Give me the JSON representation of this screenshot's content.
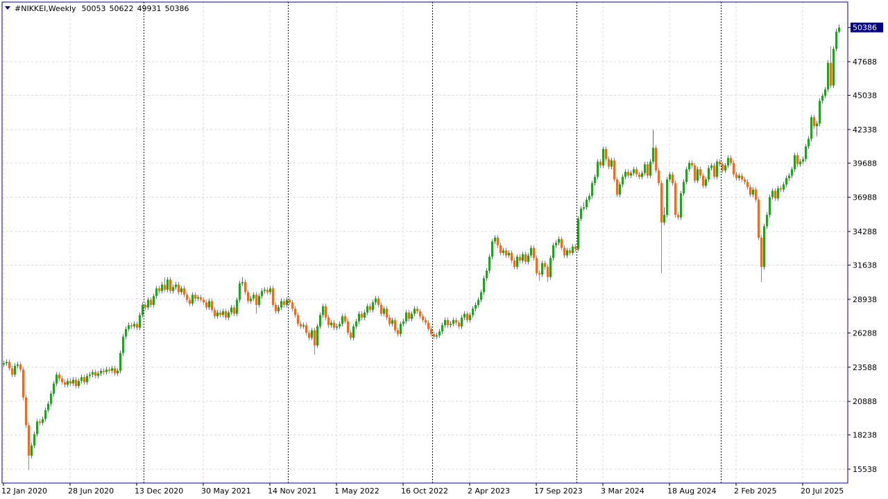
{
  "chart_data": {
    "type": "candlestick",
    "title": "#NIKKEI,Weekly",
    "open": [
      23800,
      23900,
      24000,
      23500,
      23000,
      23700,
      23800,
      23400,
      21200,
      19000,
      16600,
      17400,
      18300,
      19300,
      19200,
      19500,
      20200,
      20700,
      21500,
      22300,
      23000,
      22700,
      22400,
      22200,
      22500,
      22300,
      22600,
      22100,
      22500,
      22800,
      22400,
      22900,
      23000,
      23200,
      22900,
      23100,
      23300,
      23200,
      23400,
      23300,
      23500,
      23100,
      23300,
      24700,
      26000,
      26600,
      26900,
      26800,
      27000,
      26700,
      27700,
      28500,
      28300,
      28900,
      28500,
      29200,
      29800,
      29600,
      30100,
      29700,
      30500,
      29600,
      29900,
      30100,
      29500,
      29800,
      29300,
      28900,
      28600,
      29300,
      29000,
      29100,
      28900,
      28700,
      28300,
      28800,
      28100,
      27600,
      27900,
      27700,
      28000,
      27500,
      27900,
      28300,
      27800,
      28900,
      30200,
      30300,
      29500,
      28800,
      29000,
      29300,
      28500,
      29200,
      29600,
      29700,
      29500,
      29800,
      28500,
      28000,
      28300,
      28800,
      28500,
      28900,
      28700,
      28200,
      27700,
      27000,
      26800,
      26900,
      26300,
      25900,
      26500,
      25300,
      26800,
      27700,
      28400,
      27500,
      26900,
      27100,
      26700,
      26800,
      27000,
      27600,
      27200,
      26300,
      25900,
      26800,
      27200,
      27800,
      27500,
      27900,
      28400,
      28100,
      28700,
      29000,
      28500,
      27800,
      28200,
      27500,
      27000,
      27300,
      26500,
      26200,
      27000,
      27200,
      27900,
      27400,
      27800,
      28200,
      28000,
      27600,
      27300,
      27100,
      26600,
      26200,
      26000,
      26100,
      26400,
      26900,
      27300,
      26900,
      27000,
      27300,
      27100,
      26800,
      27500,
      27800,
      27300,
      27700,
      28200,
      28500,
      28900,
      29500,
      30600,
      31200,
      32300,
      33500,
      33800,
      33200,
      32600,
      32800,
      32400,
      32600,
      32000,
      31500,
      32300,
      32000,
      32500,
      31900,
      32400,
      33000,
      32200,
      31000,
      30900,
      31800,
      31500,
      30700,
      32200,
      33200,
      33400,
      33700,
      33000,
      32400,
      32800,
      32600,
      33100,
      32900,
      35300,
      36100,
      36200,
      36800,
      37100,
      38100,
      38600,
      39800,
      39500,
      40800,
      40000,
      39400,
      39900,
      38400,
      37200,
      38000,
      38600,
      39000,
      38700,
      38900,
      39200,
      38800,
      38600,
      38900,
      39600,
      38700,
      39800,
      40900,
      39100,
      38100,
      35000,
      35600,
      38400,
      38800,
      38100,
      35600,
      35400,
      37300,
      38200,
      39200,
      39700,
      39500,
      38300,
      39200,
      38700,
      37900,
      38400,
      39300,
      39500,
      38600,
      39800,
      39600,
      39100,
      39500,
      40100,
      39700,
      38800,
      38500,
      38700,
      38400,
      38200,
      37800,
      37200,
      37600,
      36800,
      33800,
      31500,
      34700,
      35600,
      37000,
      37500,
      36900,
      37700,
      37600,
      38000,
      38500,
      38700,
      39200,
      40300,
      39600,
      39800,
      40000,
      41000,
      41600,
      43300,
      42600,
      42800,
      44600,
      45000,
      45500,
      47600,
      45800,
      48700,
      50053
    ],
    "high": [
      24100,
      24200,
      24200,
      23700,
      23900,
      24000,
      24000,
      23600,
      21400,
      19200,
      17600,
      18500,
      19500,
      19500,
      19700,
      20400,
      20900,
      21700,
      22500,
      23200,
      23200,
      22900,
      22600,
      22700,
      22700,
      22800,
      22800,
      22700,
      23000,
      23000,
      23100,
      23200,
      23400,
      23400,
      23300,
      23500,
      23500,
      23600,
      23600,
      23700,
      23700,
      23500,
      24900,
      26200,
      26800,
      27100,
      27100,
      27200,
      27200,
      27900,
      28700,
      28700,
      29100,
      29100,
      29400,
      30000,
      30000,
      30300,
      30700,
      30700,
      30700,
      30100,
      30300,
      30300,
      30000,
      30000,
      29500,
      29100,
      29500,
      29500,
      29300,
      29300,
      29100,
      28900,
      29000,
      29000,
      28300,
      28100,
      28100,
      28200,
      28200,
      28100,
      28500,
      28500,
      29100,
      30400,
      30700,
      30500,
      29700,
      29200,
      29500,
      29500,
      29400,
      29800,
      29900,
      29900,
      30000,
      30000,
      28700,
      28500,
      29000,
      29000,
      29100,
      29100,
      28900,
      28400,
      27900,
      27200,
      27100,
      27100,
      26500,
      26700,
      26700,
      27000,
      27900,
      28600,
      28600,
      27700,
      27300,
      27300,
      27000,
      27200,
      27800,
      27800,
      27400,
      26500,
      27000,
      27400,
      28000,
      28000,
      28100,
      28600,
      28600,
      28900,
      29200,
      29200,
      28700,
      28400,
      28400,
      27700,
      27500,
      27500,
      26700,
      27200,
      27400,
      28100,
      28100,
      28000,
      28400,
      28400,
      28200,
      27800,
      27500,
      27300,
      26800,
      26400,
      26300,
      26600,
      27100,
      27500,
      27500,
      27200,
      27500,
      27500,
      27300,
      27700,
      28000,
      28000,
      27900,
      28400,
      28700,
      29100,
      29700,
      30800,
      31400,
      32500,
      33700,
      34000,
      34000,
      33400,
      33000,
      33000,
      32800,
      32800,
      32200,
      32500,
      32500,
      32700,
      32700,
      32600,
      33200,
      33200,
      32400,
      31200,
      32000,
      32000,
      31700,
      32400,
      33400,
      33600,
      33900,
      33900,
      33200,
      33000,
      33000,
      33300,
      33300,
      35500,
      36300,
      36600,
      37000,
      37300,
      38300,
      38800,
      40000,
      40000,
      41000,
      41000,
      40200,
      40100,
      40100,
      38600,
      38200,
      38800,
      39200,
      39200,
      39100,
      39400,
      39400,
      39000,
      39100,
      39800,
      39800,
      40000,
      42300,
      41100,
      39300,
      38300,
      36200,
      38600,
      39000,
      39000,
      38300,
      35800,
      37500,
      38400,
      39400,
      39900,
      39900,
      39700,
      39400,
      39400,
      38900,
      38600,
      39500,
      39700,
      39700,
      40000,
      40000,
      39800,
      39700,
      40300,
      40300,
      39900,
      39000,
      38900,
      38900,
      38600,
      38400,
      38000,
      37800,
      37800,
      37000,
      34000,
      34900,
      35800,
      37200,
      37700,
      37700,
      37900,
      37900,
      38200,
      38700,
      38900,
      39400,
      40500,
      40500,
      40000,
      40200,
      41200,
      41800,
      43500,
      43500,
      43000,
      44800,
      45200,
      45700,
      47800,
      48900,
      48900,
      50300,
      50622
    ],
    "low": [
      23600,
      23700,
      23300,
      22800,
      22800,
      23500,
      23200,
      21000,
      18800,
      15500,
      16400,
      17200,
      18100,
      19000,
      19000,
      19300,
      20000,
      20500,
      21300,
      22100,
      22500,
      22200,
      22000,
      22000,
      22100,
      22100,
      21900,
      21900,
      22300,
      22200,
      22200,
      22700,
      22800,
      22700,
      22700,
      22900,
      23000,
      23000,
      23100,
      23100,
      22900,
      22900,
      23100,
      24500,
      25800,
      26400,
      26600,
      26600,
      26500,
      26500,
      27500,
      28100,
      28100,
      28300,
      28300,
      29000,
      29400,
      29400,
      29500,
      29500,
      29400,
      29400,
      29700,
      29300,
      29300,
      29100,
      28700,
      28400,
      28400,
      28800,
      28800,
      28700,
      28500,
      28100,
      28100,
      27900,
      27400,
      27400,
      27500,
      27500,
      27300,
      27300,
      27700,
      27600,
      27600,
      28700,
      30000,
      29300,
      28600,
      28600,
      28800,
      27800,
      28300,
      29000,
      29400,
      29300,
      29300,
      28300,
      27800,
      27800,
      28100,
      28300,
      28300,
      28500,
      28000,
      27500,
      26800,
      26600,
      26600,
      26100,
      25700,
      25700,
      24600,
      25100,
      26600,
      27500,
      27300,
      26700,
      26700,
      26500,
      26500,
      26600,
      26800,
      27000,
      26100,
      25700,
      25700,
      26600,
      27000,
      27300,
      27300,
      27700,
      27900,
      27900,
      28500,
      28300,
      27600,
      27600,
      27300,
      26800,
      26800,
      26300,
      26000,
      26000,
      26800,
      27000,
      27200,
      27200,
      27600,
      27800,
      27400,
      27100,
      26900,
      26400,
      26000,
      25800,
      25800,
      25900,
      26200,
      26700,
      26700,
      26700,
      26800,
      26900,
      26600,
      26600,
      27300,
      27100,
      27100,
      27500,
      28000,
      28300,
      28700,
      29300,
      30400,
      31000,
      32100,
      33300,
      33000,
      32400,
      32400,
      32200,
      32200,
      31800,
      31300,
      31300,
      31800,
      31800,
      31700,
      31700,
      32200,
      32000,
      30800,
      30400,
      30700,
      31300,
      30300,
      30500,
      32000,
      33000,
      33200,
      32800,
      32200,
      32200,
      32400,
      32400,
      32700,
      32700,
      35100,
      35900,
      36000,
      36600,
      36900,
      37900,
      38400,
      39300,
      39300,
      39800,
      39200,
      39200,
      38200,
      37000,
      37000,
      37800,
      38400,
      38500,
      38500,
      38700,
      38600,
      38400,
      38400,
      38700,
      38500,
      38500,
      39600,
      38900,
      37900,
      31000,
      34800,
      35400,
      38200,
      37900,
      35400,
      35200,
      35200,
      37100,
      38000,
      39000,
      39300,
      38100,
      38100,
      38500,
      37700,
      37700,
      38200,
      39100,
      38400,
      38400,
      39400,
      38900,
      38900,
      39300,
      39500,
      38600,
      38300,
      38300,
      38200,
      38000,
      37600,
      37000,
      37000,
      36600,
      33600,
      30300,
      31300,
      34500,
      35400,
      36800,
      36700,
      36700,
      37400,
      37400,
      37800,
      38300,
      38500,
      39000,
      39400,
      39400,
      39600,
      39800,
      40800,
      41400,
      42400,
      41800,
      42600,
      44400,
      44800,
      45300,
      45600,
      45600,
      48500,
      49931
    ],
    "close": [
      23900,
      24000,
      23500,
      23000,
      23700,
      23800,
      23400,
      21200,
      19000,
      16600,
      17400,
      18300,
      19300,
      19200,
      19500,
      20200,
      20700,
      21500,
      22300,
      23000,
      22700,
      22400,
      22200,
      22500,
      22300,
      22600,
      22100,
      22500,
      22800,
      22400,
      22900,
      23000,
      23200,
      22900,
      23100,
      23300,
      23200,
      23400,
      23300,
      23500,
      23100,
      23300,
      24700,
      26000,
      26600,
      26900,
      26800,
      27000,
      26700,
      27700,
      28500,
      28300,
      28900,
      28500,
      29200,
      29800,
      29600,
      30100,
      29700,
      30500,
      29600,
      29900,
      30100,
      29500,
      29800,
      29300,
      28900,
      28600,
      29300,
      29000,
      29100,
      28900,
      28700,
      28300,
      28800,
      28100,
      27600,
      27900,
      27700,
      28000,
      27500,
      27900,
      28300,
      27800,
      28900,
      30200,
      30300,
      29500,
      28800,
      29000,
      29300,
      28500,
      29200,
      29600,
      29700,
      29500,
      29800,
      28500,
      28000,
      28300,
      28800,
      28500,
      28900,
      28700,
      28200,
      27700,
      27000,
      26800,
      26900,
      26300,
      25900,
      26500,
      25300,
      26800,
      27700,
      28400,
      27500,
      26900,
      27100,
      26700,
      26800,
      27000,
      27600,
      27200,
      26300,
      25900,
      26800,
      27200,
      27800,
      27500,
      27900,
      28400,
      28100,
      28700,
      29000,
      28500,
      27800,
      28200,
      27500,
      27000,
      27300,
      26500,
      26200,
      27000,
      27200,
      27900,
      27400,
      27800,
      28200,
      28000,
      27600,
      27300,
      27100,
      26600,
      26200,
      26000,
      26100,
      26400,
      26900,
      27300,
      26900,
      27000,
      27300,
      27100,
      26800,
      27500,
      27800,
      27300,
      27700,
      28200,
      28500,
      28900,
      29500,
      30600,
      31200,
      32300,
      33500,
      33800,
      33200,
      32600,
      32800,
      32400,
      32600,
      32000,
      31500,
      32300,
      32000,
      32500,
      31900,
      32400,
      33000,
      32200,
      31000,
      30900,
      31800,
      31500,
      30700,
      32200,
      33200,
      33400,
      33700,
      33000,
      32400,
      32800,
      32600,
      33100,
      32900,
      35300,
      36100,
      36200,
      36800,
      37100,
      38100,
      38600,
      39800,
      39500,
      40800,
      40000,
      39400,
      39900,
      38400,
      37200,
      38000,
      38600,
      39000,
      38700,
      38900,
      39200,
      38800,
      38600,
      38900,
      39600,
      38700,
      39800,
      40900,
      39100,
      38100,
      35000,
      35600,
      38400,
      38800,
      38100,
      35600,
      35400,
      37300,
      38200,
      39200,
      39700,
      39500,
      38300,
      39200,
      38700,
      37900,
      38400,
      39300,
      39500,
      38600,
      39800,
      39600,
      39100,
      39500,
      40100,
      39700,
      38800,
      38500,
      38700,
      38400,
      38200,
      37800,
      37200,
      37600,
      36800,
      33800,
      31500,
      34700,
      35600,
      37000,
      37500,
      36900,
      37700,
      37600,
      38000,
      38500,
      38700,
      39200,
      40300,
      39600,
      39800,
      40000,
      41000,
      41600,
      43300,
      42600,
      42800,
      44600,
      45000,
      45500,
      47600,
      45800,
      48700,
      50053,
      50386
    ],
    "up_color": "#23a123",
    "down_color": "#f26a22",
    "ylim": [
      14445,
      52389
    ],
    "yticks": [
      15538,
      18238,
      20888,
      23588,
      26288,
      28938,
      31638,
      34288,
      36988,
      39688,
      42338,
      45038,
      47688
    ],
    "xlim": [
      -0.5,
      304.25
    ],
    "xticks": [
      {
        "value": 0,
        "label": "12 Jan 2020"
      },
      {
        "value": 24,
        "label": "28 Jun 2020"
      },
      {
        "value": 48,
        "label": "13 Dec 2020"
      },
      {
        "value": 72,
        "label": "30 May 2021"
      },
      {
        "value": 96,
        "label": "14 Nov 2021"
      },
      {
        "value": 120,
        "label": "1 May 2022"
      },
      {
        "value": 144,
        "label": "16 Oct 2022"
      },
      {
        "value": 168,
        "label": "2 Apr 2023"
      },
      {
        "value": 192,
        "label": "17 Sep 2023"
      },
      {
        "value": 216,
        "label": "3 Mar 2024"
      },
      {
        "value": 240,
        "label": "18 Aug 2024"
      },
      {
        "value": 264,
        "label": "2 Feb 2025"
      },
      {
        "value": 288,
        "label": "20 Jul 2025"
      }
    ],
    "period_separators": [
      51,
      103,
      155,
      207,
      259
    ],
    "grid": true
  }
}
